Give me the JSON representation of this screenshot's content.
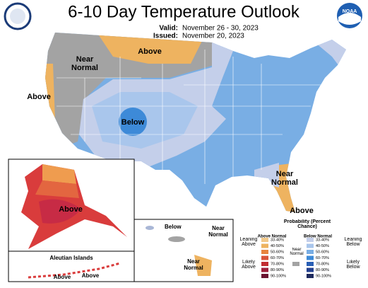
{
  "header": {
    "title": "6-10 Day Temperature Outlook",
    "valid_label": "Valid:",
    "valid_dates": "November 26 - 30, 2023",
    "issued_label": "Issued:",
    "issued_date": "November 20, 2023",
    "logo": "NOAA"
  },
  "map_labels": {
    "north_central": "Above",
    "northwest": "Near Normal",
    "west_coast": "Above",
    "center": "Below",
    "southeast": "Near Normal",
    "florida": "Above",
    "alaska": "Above",
    "aleutian_title": "Aleutian Islands",
    "aleutian_1": "Above",
    "aleutian_2": "Above",
    "hawaii_1": "Below",
    "hawaii_2": "Near Normal",
    "hawaii_3": "Near Normal"
  },
  "legend": {
    "title": "Probability (Percent Chance)",
    "above_header": "Above Normal",
    "below_header": "Below Normal",
    "leaning_above": "Leaning Above",
    "likely_above": "Likely Above",
    "near_normal": "Near Normal",
    "leaning_below": "Leaning Below",
    "likely_below": "Likely Below",
    "above_ranges": [
      "33-40%",
      "40-50%",
      "50-60%",
      "60-70%",
      "70-80%",
      "80-90%",
      "90-100%"
    ],
    "below_ranges": [
      "33-40%",
      "40-50%",
      "50-60%",
      "60-70%",
      "70-80%",
      "80-90%",
      "90-100%"
    ]
  }
}
